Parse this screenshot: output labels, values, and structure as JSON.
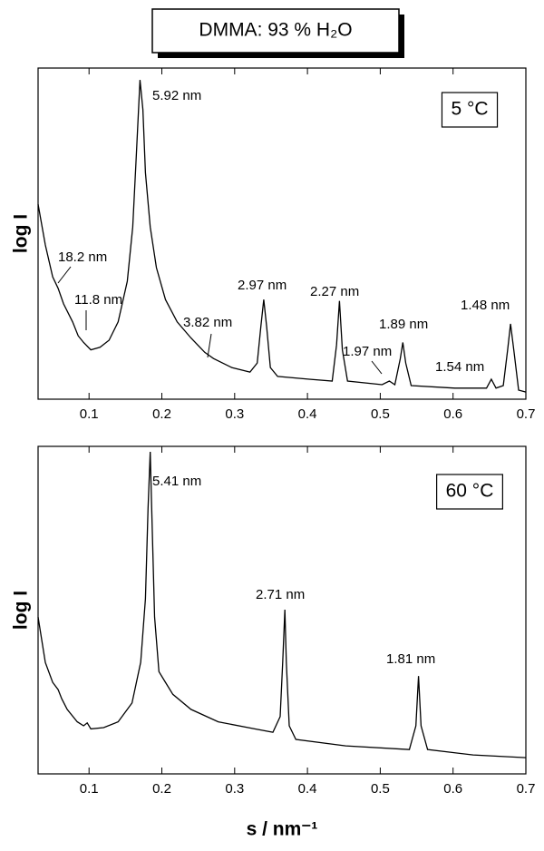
{
  "chart_data": [
    {
      "type": "line",
      "title": "DMMA: 93 % H₂O",
      "ylabel": "log I",
      "panel_label": "5 °C",
      "log_scale": "y",
      "color": "#000000",
      "xlim": [
        0.03,
        0.7
      ],
      "xticks": [
        0.1,
        0.2,
        0.3,
        0.4,
        0.5,
        0.6,
        0.7
      ],
      "ylim": [
        3.75,
        184
      ],
      "x": [
        0.03,
        0.04,
        0.05,
        0.0575,
        0.065,
        0.0775,
        0.085,
        0.0925,
        0.1025,
        0.115,
        0.1275,
        0.14,
        0.1525,
        0.16,
        0.165,
        0.17,
        0.174,
        0.1775,
        0.184,
        0.1925,
        0.205,
        0.221,
        0.24,
        0.259,
        0.271,
        0.296,
        0.321,
        0.331,
        0.336,
        0.34,
        0.344,
        0.349,
        0.359,
        0.4025,
        0.434,
        0.44,
        0.444,
        0.448,
        0.455,
        0.5025,
        0.5125,
        0.52,
        0.5275,
        0.531,
        0.535,
        0.5425,
        0.6025,
        0.646,
        0.6525,
        0.659,
        0.669,
        0.675,
        0.679,
        0.684,
        0.69,
        0.7
      ],
      "values": [
        37.1,
        23,
        15.8,
        13.8,
        11.5,
        9.3,
        7.9,
        7.3,
        6.7,
        6.9,
        7.5,
        9.3,
        15,
        28.4,
        66.7,
        160,
        113,
        53.8,
        28.4,
        17.6,
        12.1,
        9.3,
        7.7,
        6.5,
        6.05,
        5.44,
        5.16,
        5.74,
        8.8,
        12.1,
        8.8,
        5.44,
        4.9,
        4.74,
        4.64,
        7.1,
        11.9,
        6.7,
        4.64,
        4.45,
        4.64,
        4.45,
        6.05,
        7.3,
        5.74,
        4.4,
        4.27,
        4.27,
        4.74,
        4.27,
        4.4,
        6.7,
        9.1,
        6.4,
        4.17,
        4.08
      ],
      "annotations": [
        "5.92 nm",
        "18.2 nm",
        "11.8 nm",
        "3.82 nm",
        "2.97 nm",
        "2.27 nm",
        "1.97 nm",
        "1.89 nm",
        "1.54 nm",
        "1.48 nm"
      ]
    },
    {
      "type": "line",
      "ylabel": "log I",
      "xlabel": "s / nm⁻¹",
      "panel_label": "60 °C",
      "log_scale": "y",
      "color": "#000000",
      "xlim": [
        0.03,
        0.7
      ],
      "xticks": [
        0.1,
        0.2,
        0.3,
        0.4,
        0.5,
        0.6,
        0.7
      ],
      "ylim": [
        1.49,
        1352
      ],
      "x": [
        0.03,
        0.04,
        0.05,
        0.0575,
        0.0625,
        0.07,
        0.0838,
        0.0925,
        0.0975,
        0.1025,
        0.12,
        0.14,
        0.159,
        0.171,
        0.1775,
        0.181,
        0.184,
        0.186,
        0.19,
        0.196,
        0.205,
        0.215,
        0.24,
        0.2775,
        0.3275,
        0.3525,
        0.3625,
        0.366,
        0.369,
        0.371,
        0.375,
        0.384,
        0.4525,
        0.54,
        0.549,
        0.5525,
        0.556,
        0.565,
        0.6275,
        0.7
      ],
      "values": [
        38.9,
        15.1,
        10,
        8.6,
        7.1,
        5.7,
        4.4,
        4.05,
        4.3,
        3.8,
        3.9,
        4.4,
        6.5,
        15.2,
        56.8,
        375,
        1208,
        375,
        38.9,
        12.5,
        10,
        7.8,
        5.7,
        4.4,
        3.8,
        3.54,
        4.9,
        15.2,
        45.3,
        15.2,
        4.05,
        3.05,
        2.67,
        2.47,
        4.05,
        11.4,
        4.05,
        2.47,
        2.21,
        2.09
      ],
      "annotations": [
        "5.41 nm",
        "2.71 nm",
        "1.81 nm"
      ]
    }
  ]
}
